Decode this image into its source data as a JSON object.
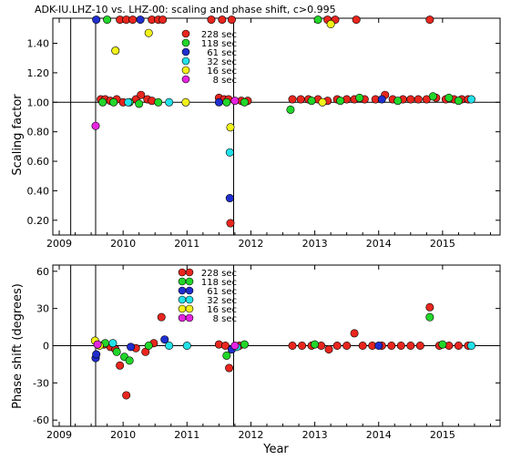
{
  "chart_data": [
    {
      "type": "scatter",
      "title": "ADK-IU.LHZ-10 vs. LHZ-00: scaling and phase shift, c>0.995",
      "xlabel": "",
      "ylabel": "Scaling factor",
      "xlim": [
        2008.9,
        2015.9
      ],
      "ylim": [
        0.1,
        1.57
      ],
      "x_ticks": [
        2009,
        2010,
        2011,
        2012,
        2013,
        2014,
        2015
      ],
      "y_ticks": [
        0.2,
        0.4,
        0.6,
        0.8,
        1.0,
        1.2,
        1.4
      ],
      "y_tick_labels": [
        "0.20",
        "0.40",
        "0.60",
        "0.80",
        "1.00",
        "1.20",
        "1.40"
      ],
      "reference_line": 1.0,
      "vertical_lines": [
        2009.18,
        2009.57,
        2011.73
      ],
      "legend_placement": "top-center",
      "series": [
        {
          "name": "228 sec",
          "color": "#e8261e",
          "points": [
            [
              2009.65,
              1.02
            ],
            [
              2009.72,
              1.02
            ],
            [
              2009.8,
              1.01
            ],
            [
              2009.9,
              1.02
            ],
            [
              2010.0,
              1.0
            ],
            [
              2010.2,
              1.02
            ],
            [
              2010.28,
              1.05
            ],
            [
              2010.38,
              1.02
            ],
            [
              2010.45,
              1.01
            ],
            [
              2011.5,
              1.03
            ],
            [
              2011.58,
              1.02
            ],
            [
              2011.65,
              1.02
            ],
            [
              2011.68,
              0.18
            ],
            [
              2011.85,
              1.01
            ],
            [
              2011.95,
              1.01
            ],
            [
              2012.65,
              1.02
            ],
            [
              2012.78,
              1.02
            ],
            [
              2012.9,
              1.02
            ],
            [
              2013.05,
              1.02
            ],
            [
              2013.2,
              1.01
            ],
            [
              2013.35,
              1.02
            ],
            [
              2013.5,
              1.02
            ],
            [
              2013.62,
              1.02
            ],
            [
              2013.78,
              1.02
            ],
            [
              2013.95,
              1.02
            ],
            [
              2014.1,
              1.05
            ],
            [
              2014.22,
              1.02
            ],
            [
              2014.38,
              1.02
            ],
            [
              2014.5,
              1.02
            ],
            [
              2014.62,
              1.02
            ],
            [
              2014.75,
              1.02
            ],
            [
              2014.9,
              1.03
            ],
            [
              2015.05,
              1.02
            ],
            [
              2015.18,
              1.02
            ],
            [
              2015.3,
              1.02
            ],
            [
              2015.4,
              1.02
            ],
            [
              2009.95,
              1.56
            ],
            [
              2010.05,
              1.56
            ],
            [
              2010.15,
              1.56
            ],
            [
              2010.45,
              1.56
            ],
            [
              2010.55,
              1.56
            ],
            [
              2010.62,
              1.56
            ],
            [
              2011.38,
              1.56
            ],
            [
              2011.55,
              1.56
            ],
            [
              2011.7,
              1.56
            ],
            [
              2013.2,
              1.56
            ],
            [
              2013.32,
              1.56
            ],
            [
              2013.65,
              1.56
            ],
            [
              2014.8,
              1.56
            ]
          ]
        },
        {
          "name": "118 sec",
          "color": "#22d62a",
          "points": [
            [
              2009.68,
              1.0
            ],
            [
              2009.85,
              1.0
            ],
            [
              2010.1,
              1.0
            ],
            [
              2010.25,
              0.99
            ],
            [
              2010.55,
              1.0
            ],
            [
              2011.62,
              1.0
            ],
            [
              2011.9,
              1.0
            ],
            [
              2012.62,
              0.95
            ],
            [
              2012.95,
              1.01
            ],
            [
              2013.4,
              1.01
            ],
            [
              2013.7,
              1.03
            ],
            [
              2014.3,
              1.01
            ],
            [
              2014.85,
              1.04
            ],
            [
              2015.1,
              1.03
            ],
            [
              2015.25,
              1.01
            ],
            [
              2009.75,
              1.56
            ],
            [
              2013.05,
              1.56
            ]
          ]
        },
        {
          "name": "61 sec",
          "color": "#1f2ecf",
          "points": [
            [
              2009.58,
              1.56
            ],
            [
              2010.27,
              1.56
            ],
            [
              2011.5,
              1.0
            ],
            [
              2011.67,
              0.35
            ],
            [
              2014.05,
              1.02
            ]
          ]
        },
        {
          "name": "32 sec",
          "color": "#22e0e8",
          "points": [
            [
              2010.08,
              1.0
            ],
            [
              2010.72,
              1.0
            ],
            [
              2011.67,
              0.66
            ],
            [
              2015.45,
              1.02
            ]
          ]
        },
        {
          "name": "16 sec",
          "color": "#f2f21a",
          "points": [
            [
              2009.88,
              1.35
            ],
            [
              2010.4,
              1.47
            ],
            [
              2010.98,
              1.0
            ],
            [
              2011.68,
              0.83
            ],
            [
              2013.25,
              1.53
            ],
            [
              2013.12,
              1.0
            ]
          ]
        },
        {
          "name": "8 sec",
          "color": "#e624e0",
          "points": [
            [
              2009.57,
              0.84
            ],
            [
              2011.75,
              1.01
            ]
          ]
        }
      ]
    },
    {
      "type": "scatter",
      "title": "",
      "xlabel": "Year",
      "ylabel": "Phase shift (degrees)",
      "xlim": [
        2008.9,
        2015.9
      ],
      "ylim": [
        -65,
        65
      ],
      "x_ticks": [
        2009,
        2010,
        2011,
        2012,
        2013,
        2014,
        2015
      ],
      "y_ticks": [
        -60,
        -30,
        0,
        30,
        60
      ],
      "y_tick_labels": [
        "-60",
        "-30",
        "0",
        "30",
        "60"
      ],
      "reference_line": 0,
      "vertical_lines": [
        2009.18,
        2009.57,
        2011.73
      ],
      "legend_placement": "top-center",
      "series": [
        {
          "name": "228 sec",
          "color": "#e8261e",
          "points": [
            [
              2009.7,
              1
            ],
            [
              2009.8,
              -1
            ],
            [
              2009.88,
              -3
            ],
            [
              2009.95,
              -16
            ],
            [
              2010.05,
              -40
            ],
            [
              2010.2,
              -2
            ],
            [
              2010.35,
              -5
            ],
            [
              2010.48,
              2
            ],
            [
              2010.6,
              23
            ],
            [
              2011.5,
              1
            ],
            [
              2011.6,
              0
            ],
            [
              2011.66,
              -18
            ],
            [
              2011.82,
              0
            ],
            [
              2012.65,
              0
            ],
            [
              2012.8,
              0
            ],
            [
              2012.95,
              0
            ],
            [
              2013.1,
              0
            ],
            [
              2013.22,
              -3
            ],
            [
              2013.35,
              0
            ],
            [
              2013.5,
              0
            ],
            [
              2013.62,
              10
            ],
            [
              2013.75,
              0
            ],
            [
              2013.9,
              0
            ],
            [
              2014.05,
              0
            ],
            [
              2014.2,
              0
            ],
            [
              2014.35,
              0
            ],
            [
              2014.5,
              0
            ],
            [
              2014.65,
              0
            ],
            [
              2014.8,
              31
            ],
            [
              2014.95,
              0
            ],
            [
              2015.1,
              0
            ],
            [
              2015.25,
              0
            ],
            [
              2015.4,
              0
            ]
          ]
        },
        {
          "name": "118 sec",
          "color": "#22d62a",
          "points": [
            [
              2009.72,
              2
            ],
            [
              2009.9,
              -5
            ],
            [
              2010.02,
              -9
            ],
            [
              2010.1,
              -12
            ],
            [
              2010.4,
              0
            ],
            [
              2011.62,
              -8
            ],
            [
              2011.9,
              1
            ],
            [
              2013.0,
              1
            ],
            [
              2014.8,
              23
            ],
            [
              2015.0,
              1
            ]
          ]
        },
        {
          "name": "61 sec",
          "color": "#1f2ecf",
          "points": [
            [
              2009.57,
              -10
            ],
            [
              2009.58,
              -7
            ],
            [
              2010.12,
              -1
            ],
            [
              2010.65,
              5
            ],
            [
              2011.7,
              -3
            ],
            [
              2014.0,
              0
            ]
          ]
        },
        {
          "name": "32 sec",
          "color": "#22e0e8",
          "points": [
            [
              2009.84,
              2
            ],
            [
              2010.72,
              0
            ],
            [
              2011.0,
              0
            ],
            [
              2011.78,
              -1
            ],
            [
              2015.45,
              0
            ]
          ]
        },
        {
          "name": "16 sec",
          "color": "#f2f21a",
          "points": [
            [
              2009.56,
              4
            ],
            [
              2009.63,
              0
            ]
          ]
        },
        {
          "name": "8 sec",
          "color": "#e624e0",
          "points": [
            [
              2009.6,
              1
            ],
            [
              2011.75,
              0
            ]
          ]
        }
      ]
    }
  ]
}
